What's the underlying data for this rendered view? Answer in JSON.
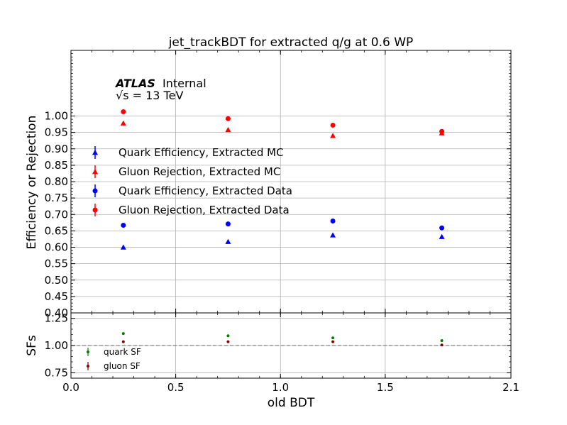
{
  "chart_data": [
    {
      "type": "scatter",
      "title": "jet_trackBDT for extracted q/g at 0.6 WP",
      "xlabel": "",
      "ylabel": "Efficiency or Rejection",
      "xlim": [
        0.0,
        2.1
      ],
      "ylim": [
        0.4,
        1.2
      ],
      "yticks": [
        "0.40",
        "0.45",
        "0.50",
        "0.55",
        "0.60",
        "0.65",
        "0.70",
        "0.75",
        "0.80",
        "0.85",
        "0.90",
        "0.95",
        "1.00"
      ],
      "grid": true,
      "legend_position": "center-left",
      "series": [
        {
          "name": "Quark Efficiency, Extracted MC",
          "marker": "triangle",
          "color": "#0000ff",
          "x": [
            0.25,
            0.75,
            1.25,
            1.77
          ],
          "y": [
            0.6,
            0.617,
            0.637,
            0.632
          ]
        },
        {
          "name": "Gluon Rejection, Extracted MC",
          "marker": "triangle",
          "color": "#ff0000",
          "x": [
            0.25,
            0.75,
            1.25,
            1.77
          ],
          "y": [
            0.978,
            0.958,
            0.94,
            0.948
          ]
        },
        {
          "name": "Quark Efficiency, Extracted Data",
          "marker": "circle",
          "color": "#0000ff",
          "x": [
            0.25,
            0.75,
            1.25,
            1.77
          ],
          "y": [
            0.667,
            0.671,
            0.68,
            0.659
          ]
        },
        {
          "name": "Gluon Rejection, Extracted Data",
          "marker": "circle",
          "color": "#ff0000",
          "x": [
            0.25,
            0.75,
            1.25,
            1.77
          ],
          "y": [
            1.013,
            0.992,
            0.972,
            0.953
          ]
        }
      ]
    },
    {
      "type": "scatter",
      "title": "",
      "xlabel": "old BDT",
      "ylabel": "SFs",
      "xlim": [
        0.0,
        2.1
      ],
      "ylim": [
        0.7,
        1.3
      ],
      "xticks": [
        "0.0",
        "0.5",
        "1.0",
        "1.5",
        "2.1"
      ],
      "xtick_values": [
        0.0,
        0.5,
        1.0,
        1.5,
        2.1
      ],
      "yticks": [
        "0.75",
        "1.00",
        "1.25"
      ],
      "ytick_values": [
        0.75,
        1.0,
        1.25
      ],
      "reference_line": 1.0,
      "grid": true,
      "legend_position": "bottom-left",
      "series": [
        {
          "name": "quark SF",
          "marker": "circle",
          "color": "#008000",
          "x": [
            0.25,
            0.75,
            1.25,
            1.77
          ],
          "y": [
            1.11,
            1.09,
            1.07,
            1.045
          ]
        },
        {
          "name": "gluon SF",
          "marker": "circle",
          "color": "#8b0000",
          "x": [
            0.25,
            0.75,
            1.25,
            1.77
          ],
          "y": [
            1.035,
            1.035,
            1.035,
            1.005
          ]
        }
      ]
    }
  ],
  "annotation": {
    "experiment": "ATLAS",
    "label": "Internal",
    "energy": "√s = 13 TeV"
  }
}
